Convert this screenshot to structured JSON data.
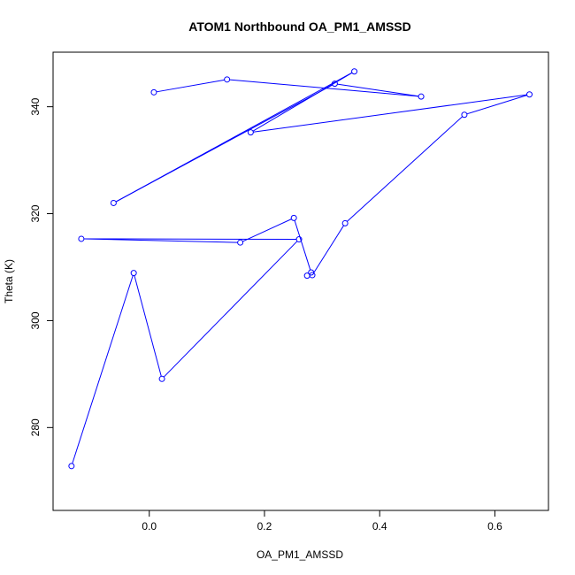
{
  "chart_data": {
    "type": "line",
    "title": "ATOM1 Northbound OA_PM1_AMSSD",
    "xlabel": "OA_PM1_AMSSD",
    "ylabel": "Theta (K)",
    "xlim": [
      -0.167,
      0.693
    ],
    "ylim": [
      264.5,
      350.2
    ],
    "xticks": [
      0.0,
      0.2,
      0.4,
      0.6
    ],
    "xtick_labels": [
      "0.0",
      "0.2",
      "0.4",
      "0.6"
    ],
    "yticks": [
      280,
      300,
      320,
      340
    ],
    "ytick_labels": [
      "280",
      "300",
      "320",
      "340"
    ],
    "grid": false,
    "series": [
      {
        "color": "#0000ff",
        "marker": "open-circle",
        "x": [
          -0.135,
          -0.027,
          0.022,
          0.26,
          -0.118,
          0.158,
          0.251,
          0.281,
          0.274,
          0.283,
          0.34,
          0.547,
          0.66,
          0.176,
          0.356,
          -0.062,
          0.322,
          0.472,
          0.135,
          0.008
        ],
        "y": [
          272.8,
          308.9,
          289.1,
          315.2,
          315.3,
          314.6,
          319.2,
          309.0,
          308.4,
          308.5,
          318.2,
          338.5,
          342.3,
          335.2,
          346.6,
          322.0,
          344.3,
          341.9,
          345.1,
          342.7
        ]
      }
    ]
  }
}
